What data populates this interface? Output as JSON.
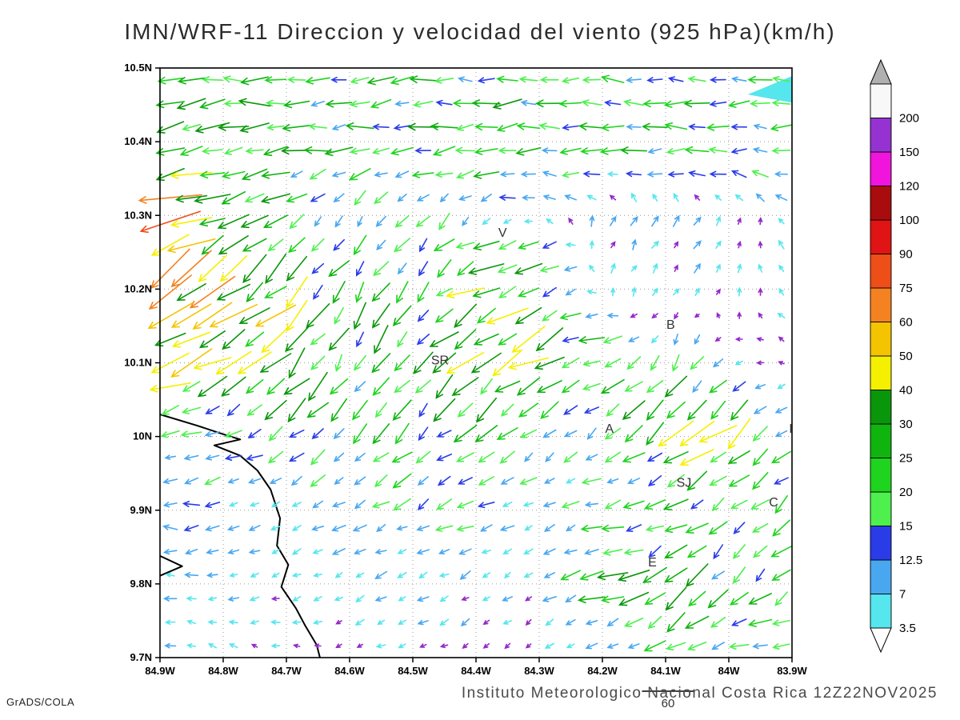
{
  "title": "IMN/WRF-11 Direccion y velocidad del viento (925 hPa)(km/h)",
  "footer": {
    "caption": "Instituto Meteorologico Nacional Costa Rica  12Z22NOV2025",
    "credit": "GrADS/COLA"
  },
  "chart_data": {
    "type": "vector_field",
    "title": "IMN/WRF-11 Direccion y velocidad del viento (925 hPa)(km/h)",
    "x_axis": {
      "ticks": [
        "84.9W",
        "84.8W",
        "84.7W",
        "84.6W",
        "84.5W",
        "84.4W",
        "84.3W",
        "84.2W",
        "84.1W",
        "84W",
        "83.9W"
      ],
      "range_deg": [
        -84.9,
        -83.9
      ]
    },
    "y_axis": {
      "ticks": [
        "10.5N",
        "10.4N",
        "10.3N",
        "10.2N",
        "10.1N",
        "10N",
        "9.9N",
        "9.8N",
        "9.7N"
      ],
      "range_deg": [
        9.7,
        10.5
      ]
    },
    "grid": "dotted",
    "colorbar": {
      "levels": [
        3.5,
        7,
        12.5,
        15,
        20,
        25,
        30,
        40,
        50,
        60,
        75,
        90,
        100,
        120,
        150,
        200
      ],
      "band_colors": [
        "#55e6ee",
        "#49a7f0",
        "#2a3ce8",
        "#4ef04e",
        "#1ed41e",
        "#0fb40f",
        "#0a960a",
        "#f5f000",
        "#f5c400",
        "#f58220",
        "#ee4e18",
        "#e01414",
        "#a80c0c",
        "#f014dc",
        "#9632d2",
        "#f8f8f8"
      ],
      "under_triangle_color": "#ffffff",
      "over_triangle_color": "#b0b0b0",
      "calm_arrow_color": "#9428c8"
    },
    "stations": [
      {
        "label": "V",
        "lon": -84.358,
        "lat": 10.271
      },
      {
        "label": "B",
        "lon": -84.092,
        "lat": 10.146
      },
      {
        "label": "SR",
        "lon": -84.457,
        "lat": 10.098
      },
      {
        "label": "A",
        "lon": -84.189,
        "lat": 10.005
      },
      {
        "label": "SJ",
        "lon": -84.071,
        "lat": 9.932
      },
      {
        "label": "C",
        "lon": -83.929,
        "lat": 9.905
      },
      {
        "label": "E",
        "lon": -84.121,
        "lat": 9.824
      },
      {
        "label": "I",
        "lon": -83.902,
        "lat": 10.005
      }
    ],
    "coastline": [
      [
        [
          -84.9,
          10.03
        ],
        [
          -84.842,
          10.015
        ],
        [
          -84.796,
          10.002
        ],
        [
          -84.773,
          9.996
        ],
        [
          -84.814,
          9.988
        ],
        [
          -84.773,
          9.974
        ],
        [
          -84.746,
          9.954
        ],
        [
          -84.725,
          9.928
        ],
        [
          -84.71,
          9.889
        ],
        [
          -84.715,
          9.852
        ],
        [
          -84.697,
          9.826
        ],
        [
          -84.708,
          9.796
        ],
        [
          -84.685,
          9.767
        ],
        [
          -84.67,
          9.743
        ],
        [
          -84.652,
          9.717
        ],
        [
          -84.647,
          9.7
        ]
      ],
      [
        [
          -84.9,
          9.838
        ],
        [
          -84.865,
          9.824
        ],
        [
          -84.9,
          9.811
        ]
      ]
    ],
    "shaded_patch": {
      "color": "#55e6ee",
      "points": [
        [
          -83.97,
          10.464
        ],
        [
          -83.9,
          10.489
        ],
        [
          -83.9,
          10.453
        ]
      ]
    },
    "reference_arrow": {
      "value": 60,
      "label": "60"
    },
    "wind_grid": {
      "lon_start": -84.9,
      "lon_step": 0.1,
      "lat_start": 10.5,
      "lat_step": -0.1,
      "units": "km/h",
      "u": [
        [
          -18,
          -20,
          -21,
          -22,
          -20,
          -19,
          -20,
          -22,
          -20,
          -18,
          -16
        ],
        [
          -26,
          -30,
          -24,
          -21,
          -23,
          -26,
          -23,
          -21,
          -22,
          -20,
          -18
        ],
        [
          -60,
          -45,
          -12,
          -8,
          -9,
          -8,
          -4,
          2,
          4,
          3,
          -4
        ],
        [
          -42,
          -36,
          -26,
          -12,
          -10,
          -34,
          -28,
          2,
          3,
          2,
          -3
        ],
        [
          -44,
          -36,
          -22,
          -13,
          -16,
          -26,
          -30,
          -24,
          -10,
          -3,
          -3
        ],
        [
          -13,
          -11,
          -13,
          -15,
          -18,
          -16,
          -11,
          -6,
          -26,
          -30,
          -9
        ],
        [
          -11,
          -9,
          -8,
          -10,
          -12,
          -10,
          -8,
          -16,
          -20,
          -11,
          -13
        ],
        [
          -8,
          -6,
          -4,
          -5,
          -8,
          -6,
          -4,
          -28,
          -20,
          -16,
          -10
        ],
        [
          -6,
          -4,
          -3,
          -3,
          -4,
          -3,
          -3,
          -8,
          -14,
          -18,
          -20
        ]
      ],
      "v": [
        [
          0,
          -1,
          -1,
          -2,
          -1,
          0,
          0,
          0,
          1,
          2,
          2
        ],
        [
          -4,
          -5,
          -3,
          -4,
          -3,
          -3,
          -2,
          -2,
          -2,
          -1,
          0
        ],
        [
          -25,
          -18,
          -10,
          -12,
          -12,
          -8,
          4,
          6,
          6,
          5,
          4
        ],
        [
          -28,
          -28,
          -24,
          -16,
          -18,
          -12,
          -18,
          5,
          5,
          4,
          3
        ],
        [
          -12,
          -20,
          -24,
          -22,
          -20,
          -24,
          -14,
          -8,
          -18,
          -3,
          2
        ],
        [
          -2,
          -5,
          -9,
          -17,
          -15,
          -12,
          -8,
          -6,
          -20,
          -24,
          -6
        ],
        [
          0,
          -2,
          -3,
          -5,
          -7,
          -5,
          -5,
          -5,
          -8,
          -10,
          -12
        ],
        [
          1,
          -2,
          -2,
          -3,
          -3,
          -3,
          -3,
          -10,
          -14,
          -17,
          -8
        ],
        [
          2,
          2,
          1,
          -1,
          -2,
          -2,
          -2,
          -4,
          -8,
          -6,
          -4
        ]
      ]
    }
  }
}
